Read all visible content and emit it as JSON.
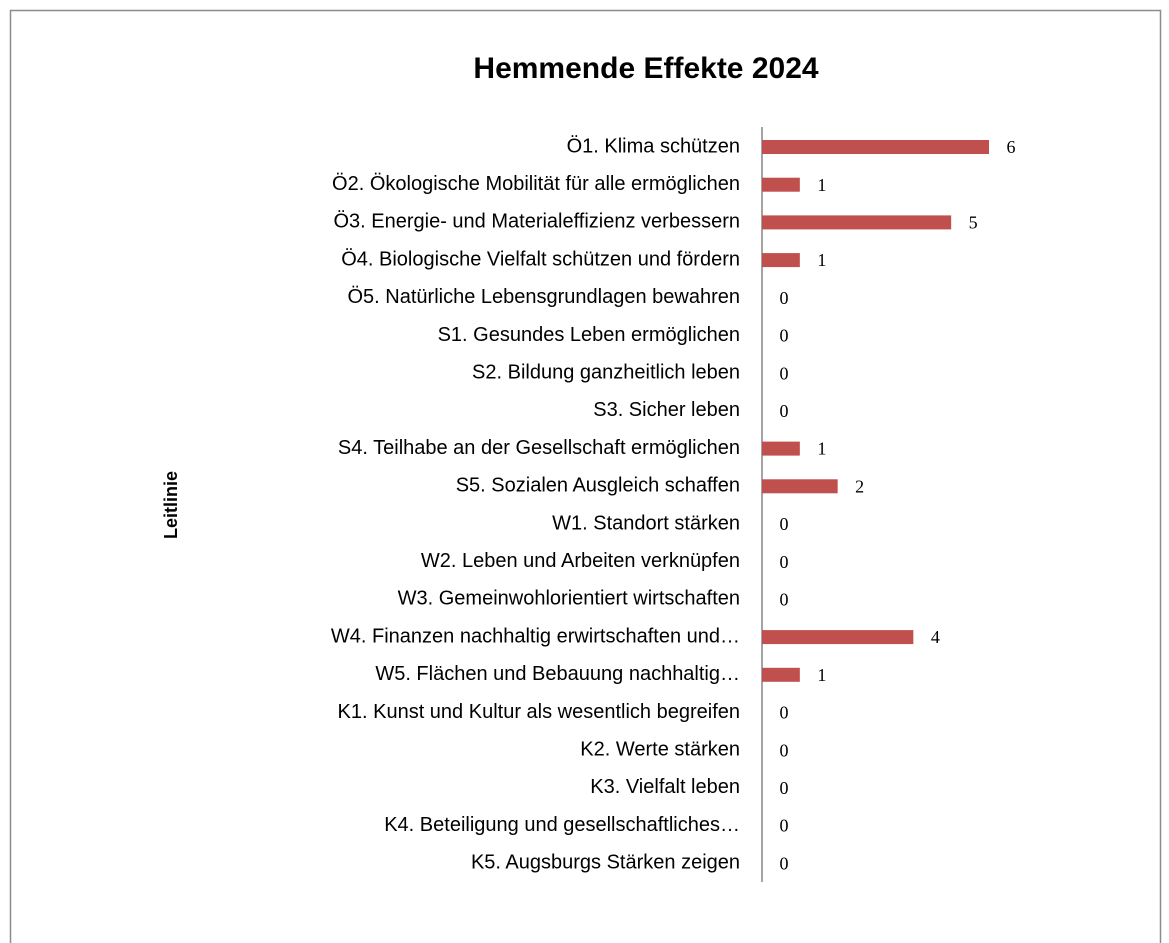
{
  "chart_data": {
    "type": "bar",
    "orientation": "horizontal",
    "title": "Hemmende Effekte 2024",
    "y_label": "Leitlinie",
    "categories": [
      "Ö1. Klima schützen",
      "Ö2. Ökologische Mobilität für alle ermöglichen",
      "Ö3. Energie- und Materialeffizienz verbessern",
      "Ö4. Biologische Vielfalt schützen und fördern",
      "Ö5. Natürliche Lebensgrundlagen bewahren",
      "S1. Gesundes Leben ermöglichen",
      "S2. Bildung ganzheitlich leben",
      "S3. Sicher leben",
      "S4. Teilhabe an der Gesellschaft ermöglichen",
      "S5. Sozialen Ausgleich schaffen",
      "W1. Standort stärken",
      "W2. Leben und Arbeiten verknüpfen",
      "W3. Gemeinwohlorientiert wirtschaften",
      "W4. Finanzen nachhaltig erwirtschaften und…",
      "W5. Flächen und Bebauung nachhaltig…",
      "K1. Kunst und Kultur als wesentlich begreifen",
      "K2. Werte stärken",
      "K3. Vielfalt leben",
      "K4. Beteiligung und gesellschaftliches…",
      "K5. Augsburgs Stärken zeigen"
    ],
    "values": [
      6,
      1,
      5,
      1,
      0,
      0,
      0,
      0,
      1,
      2,
      0,
      0,
      0,
      4,
      1,
      0,
      0,
      0,
      0,
      0
    ],
    "color": "#c0504d",
    "xlim": [
      0,
      6
    ]
  }
}
